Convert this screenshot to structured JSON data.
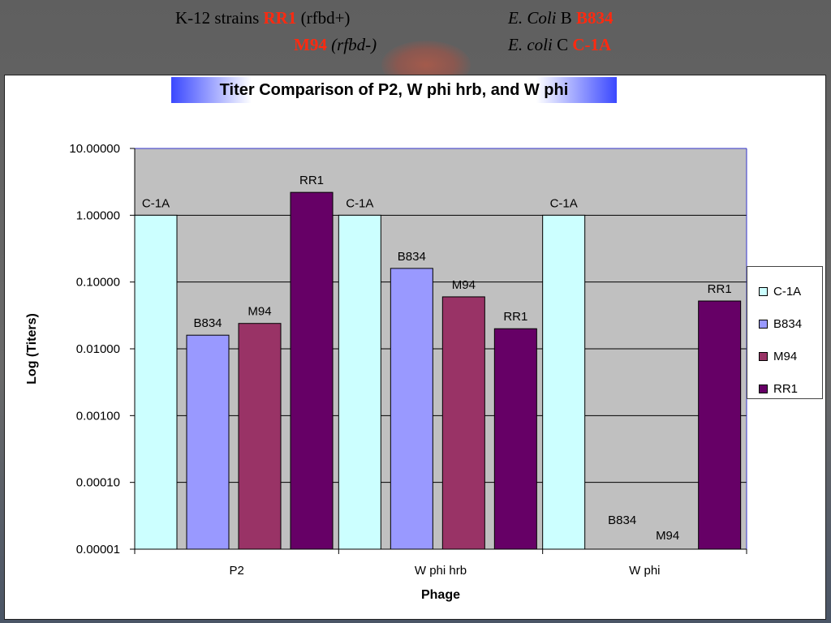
{
  "header": {
    "line1_left_prefix": "K-12 strains ",
    "line1_left_red": "RR1",
    "line1_left_suffix": " (rfbd+)",
    "line1_right_italic": "E. Coli",
    "line1_right_plain": " B ",
    "line1_right_red": "B834",
    "line2_left_red": "M94",
    "line2_left_italic": " (rfbd-)",
    "line2_right_italic": "E. coli",
    "line2_right_plain": " C ",
    "line2_right_red": "C-1A"
  },
  "colors": {
    "C-1A": "#ccffff",
    "B834": "#9999ff",
    "M94": "#993366",
    "RR1": "#660066",
    "plot_bg": "#c0c0c0"
  },
  "chart_data": {
    "type": "bar",
    "title": "Titer Comparison of P2, W phi hrb, and W phi",
    "xlabel": "Phage",
    "ylabel": "Log (Titers)",
    "y_scale": "log",
    "ylim": [
      1e-05,
      10
    ],
    "y_ticks": [
      "10.00000",
      "1.00000",
      "0.10000",
      "0.01000",
      "0.00100",
      "0.00010",
      "0.00001"
    ],
    "categories": [
      "P2",
      "W phi hrb",
      "W phi"
    ],
    "series": [
      {
        "name": "C-1A",
        "values": [
          1.0,
          1.0,
          1.0
        ]
      },
      {
        "name": "B834",
        "values": [
          0.016,
          0.16,
          1e-05
        ]
      },
      {
        "name": "M94",
        "values": [
          0.024,
          0.06,
          1e-05
        ]
      },
      {
        "name": "RR1",
        "values": [
          2.2,
          0.02,
          0.052
        ]
      }
    ],
    "legend_position": "right",
    "grid": true
  }
}
